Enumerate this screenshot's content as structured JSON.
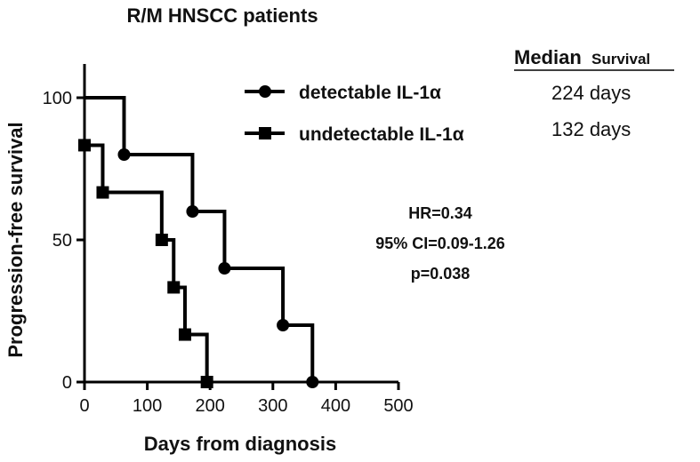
{
  "chart_data": {
    "type": "line",
    "title": "R/M HNSCC patients",
    "xlabel": "Days from diagnosis",
    "ylabel": "Progression-free survival",
    "xlim": [
      0,
      500
    ],
    "ylim": [
      0,
      100
    ],
    "xticks": [
      0,
      100,
      200,
      300,
      400,
      500
    ],
    "yticks": [
      0,
      50,
      100
    ],
    "grid": false,
    "legend_position": "top-center",
    "series": [
      {
        "name": "detectable IL-1α",
        "marker": "circle",
        "steps": [
          [
            0,
            100
          ],
          [
            63,
            80
          ],
          [
            172,
            60
          ],
          [
            223,
            40
          ],
          [
            316,
            20
          ],
          [
            363,
            0
          ]
        ]
      },
      {
        "name": "undetectable IL-1α",
        "marker": "square",
        "steps": [
          [
            0,
            83.3
          ],
          [
            29,
            66.7
          ],
          [
            123,
            50
          ],
          [
            142,
            33.3
          ],
          [
            160,
            16.7
          ],
          [
            195,
            0
          ]
        ]
      }
    ],
    "median_table": {
      "header_bold": "Median",
      "header_small": "Survival",
      "rows": [
        "224 days",
        "132 days"
      ]
    },
    "stats": [
      "HR=0.34",
      "95% CI=0.09-1.26",
      "p=0.038"
    ]
  }
}
